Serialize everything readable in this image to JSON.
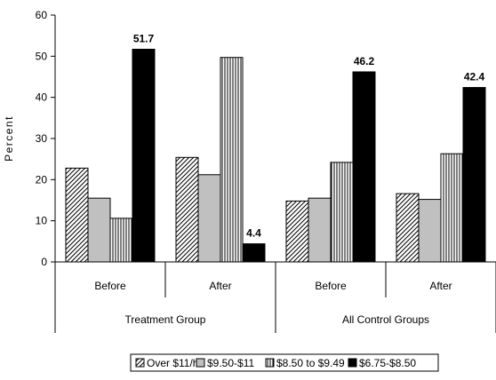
{
  "chart_data": {
    "type": "bar",
    "ylabel": "Percent",
    "ylim": [
      0,
      60
    ],
    "yticks": [
      0,
      10,
      20,
      30,
      40,
      50,
      60
    ],
    "categories": [
      "Before",
      "After",
      "Before",
      "After"
    ],
    "groups": [
      {
        "label": "Treatment Group",
        "span": 2
      },
      {
        "label": "All Control Groups",
        "span": 2
      }
    ],
    "series": [
      {
        "name": "Over $11/hr",
        "pattern": "diagonal",
        "values": [
          22.8,
          25.4,
          14.8,
          16.6
        ]
      },
      {
        "name": "$9.50-$11",
        "pattern": "gray",
        "values": [
          15.5,
          21.2,
          15.5,
          15.2
        ]
      },
      {
        "name": "$8.50 to $9.49",
        "pattern": "vertical",
        "values": [
          10.6,
          49.7,
          24.2,
          26.3
        ]
      },
      {
        "name": "$6.75-$8.50",
        "pattern": "black",
        "values": [
          51.7,
          4.4,
          46.2,
          42.4
        ]
      }
    ],
    "data_labels": [
      {
        "category": 0,
        "series": 3,
        "text": "51.7"
      },
      {
        "category": 1,
        "series": 3,
        "text": "4.4"
      },
      {
        "category": 2,
        "series": 3,
        "text": "46.2"
      },
      {
        "category": 3,
        "series": 3,
        "text": "42.4"
      }
    ],
    "grid": false,
    "legend_position": "bottom",
    "colors": {
      "gray": "#c0c0c0",
      "black": "#000000",
      "white": "#ffffff"
    }
  }
}
